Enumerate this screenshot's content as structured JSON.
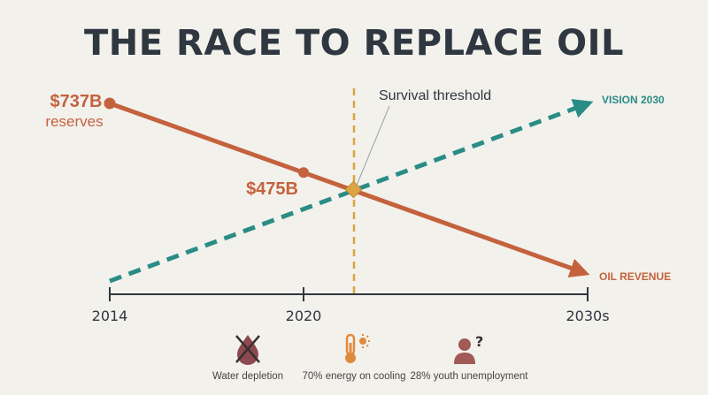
{
  "chart_data": {
    "type": "line",
    "title": "THE RACE TO REPLACE OIL",
    "x_ticks": [
      "2014",
      "2020",
      "2030s"
    ],
    "series": [
      {
        "name": "OIL REVENUE",
        "color": "#c4623e",
        "style": "solid",
        "points": [
          {
            "x": "2014",
            "y": 737,
            "label": "$737B",
            "sublabel": "reserves"
          },
          {
            "x": "2020",
            "y": 475,
            "label": "$475B"
          },
          {
            "x": "2030s",
            "y": 0
          }
        ]
      },
      {
        "name": "VISION 2030",
        "color": "#2a8c86",
        "style": "dashed",
        "points": [
          {
            "x": "2014",
            "y": 0
          },
          {
            "x": "2030s",
            "y": 900
          }
        ]
      }
    ],
    "threshold": {
      "label": "Survival threshold",
      "color": "#d9a441"
    },
    "footer": [
      {
        "icon": "water-drop-crossed-icon",
        "label": "Water depletion",
        "color": "#8a4a4f"
      },
      {
        "icon": "thermometer-sun-icon",
        "label": "70% energy on cooling",
        "color": "#e08a3c"
      },
      {
        "icon": "person-question-icon",
        "label": "28% youth unemployment",
        "color": "#a15a55"
      }
    ]
  }
}
